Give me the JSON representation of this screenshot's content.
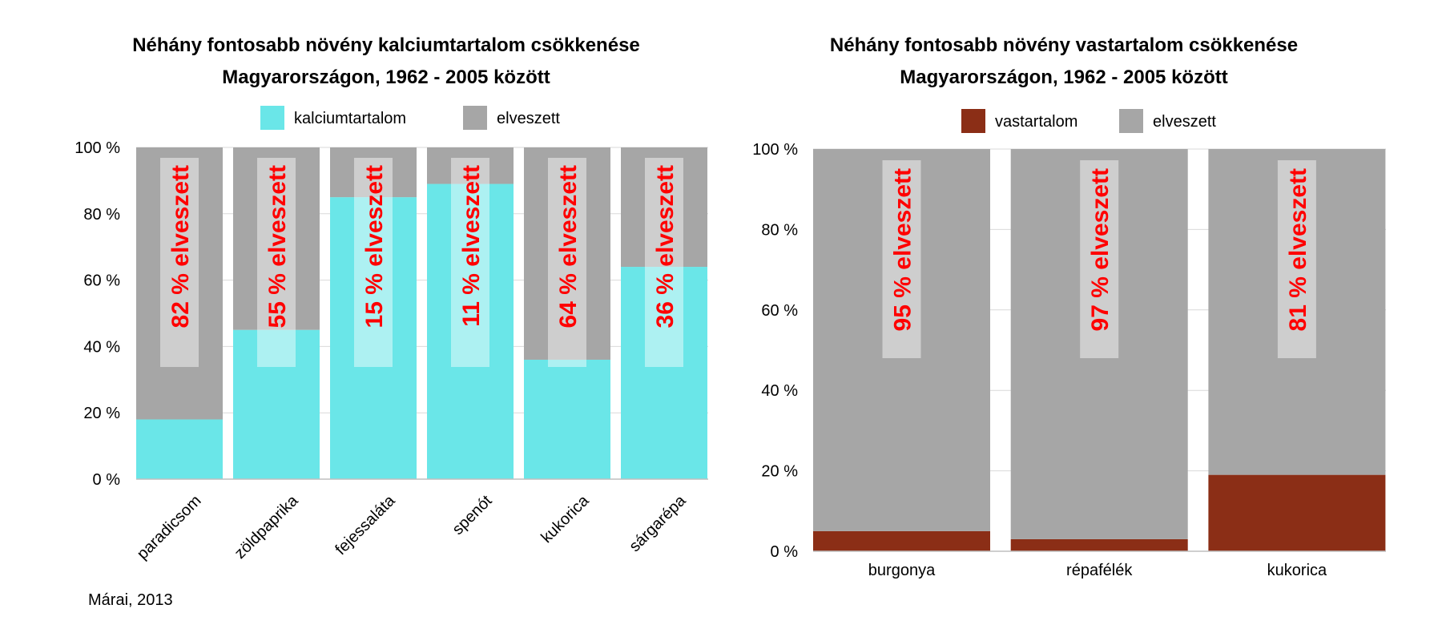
{
  "colors": {
    "calcium": "#6ae6e8",
    "iron": "#8b2e16",
    "lost": "#a6a6a6",
    "loss_label_text": "#ff0000",
    "loss_label_box": "#ffffff",
    "gridline": "#d9d9d9"
  },
  "source": "Márai, 2013",
  "chart_data": [
    {
      "type": "bar",
      "stacked": true,
      "title_lines": [
        "Néhány fontosabb növény kalciumtartalom csökkenése",
        "Magyarországon, 1962 - 2005 között"
      ],
      "legend": {
        "position": "top",
        "items": [
          "kalciumtartalom",
          "elveszett"
        ]
      },
      "categories": [
        "paradicsom",
        "zöldpaprika",
        "fejessaláta",
        "spenót",
        "kukorica",
        "sárgarépa"
      ],
      "series": [
        {
          "name": "kalciumtartalom",
          "values": [
            18,
            45,
            85,
            89,
            36,
            64
          ]
        },
        {
          "name": "elveszett",
          "values": [
            82,
            55,
            15,
            11,
            64,
            36
          ]
        }
      ],
      "bar_labels": [
        "82 % elveszett",
        "55 % elveszett",
        "15 % elveszett",
        "11 % elveszett",
        "64 % elveszett",
        "36 % elveszett"
      ],
      "yticks": [
        "0 %",
        "20 %",
        "40 %",
        "60 %",
        "80 %",
        "100 %"
      ],
      "ylim": [
        0,
        100
      ],
      "category_label_rotation": -45
    },
    {
      "type": "bar",
      "stacked": true,
      "title_lines": [
        "Néhány fontosabb növény vastartalom csökkenése",
        "Magyarországon, 1962 - 2005 között"
      ],
      "legend": {
        "position": "top",
        "items": [
          "vastartalom",
          "elveszett"
        ]
      },
      "categories": [
        "burgonya",
        "répafélék",
        "kukorica"
      ],
      "series": [
        {
          "name": "vastartalom",
          "values": [
            5,
            3,
            19
          ]
        },
        {
          "name": "elveszett",
          "values": [
            95,
            97,
            81
          ]
        }
      ],
      "bar_labels": [
        "95 % elveszett",
        "97 % elveszett",
        "81 % elveszett"
      ],
      "yticks": [
        "0 %",
        "20 %",
        "40 %",
        "60 %",
        "80 %",
        "100 %"
      ],
      "ylim": [
        0,
        100
      ],
      "category_label_rotation": 0
    }
  ]
}
